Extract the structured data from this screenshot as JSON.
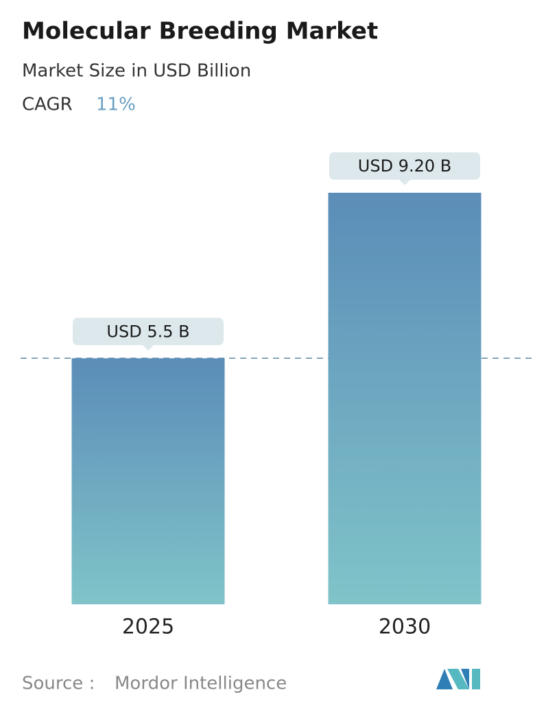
{
  "chart_data": {
    "type": "bar",
    "title": "Molecular Breeding Market",
    "subtitle": "Market Size in USD Billion",
    "cagr_label": "CAGR",
    "cagr": "11%",
    "categories": [
      "2025",
      "2030"
    ],
    "values": [
      5.5,
      9.2
    ],
    "value_labels": [
      "USD 5.5 B",
      "USD 9.20 B"
    ],
    "source_label": "Source :",
    "source": "Mordor Intelligence"
  }
}
